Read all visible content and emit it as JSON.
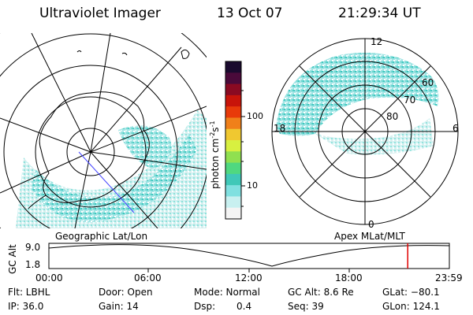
{
  "header": {
    "instrument": "Ultraviolet Imager",
    "date": "13 Oct 07",
    "time": "21:29:34 UT"
  },
  "colorbar": {
    "unit_label": "photon cm",
    "unit_sup1": "-2",
    "unit_mid": "s",
    "unit_sup2": "-1",
    "ticks": [
      "100",
      "10"
    ],
    "scale": "log",
    "colors": [
      "#1a0a2e",
      "#4a0a3a",
      "#8a0a22",
      "#c8140a",
      "#e83a0a",
      "#f0801a",
      "#f0c830",
      "#d8f040",
      "#90e050",
      "#50d880",
      "#40c8b8",
      "#80e0e0",
      "#c8f0f0",
      "#f4f4f4"
    ]
  },
  "maps": {
    "geographic": {
      "label": "Geographic Lat/Lon"
    },
    "apex": {
      "label": "Apex MLat/MLT",
      "mlt_labels": [
        "12",
        "18",
        "6",
        "0"
      ],
      "mlat_labels": [
        "60",
        "70",
        "80"
      ]
    }
  },
  "altitude_plot": {
    "ylabel": "GC Alt",
    "yticks": [
      "9.0",
      "1.8"
    ],
    "xticks": [
      "00:00",
      "06:00",
      "12:00",
      "18:00",
      "23:59"
    ],
    "marker_time_hours": 21.49
  },
  "footer": {
    "filter": "Flt: LBHL",
    "ip": "IP: 36.0",
    "door": "Door: Open",
    "gain": "Gain: 14",
    "mode": "Mode: Normal",
    "dsp_label": "Dsp:",
    "dsp_value": "0.4",
    "gc_alt": "GC Alt: 8.6 Re",
    "seq": "Seq: 39",
    "glat": "GLat: −80.1",
    "glon": "GLon: 124.1"
  }
}
